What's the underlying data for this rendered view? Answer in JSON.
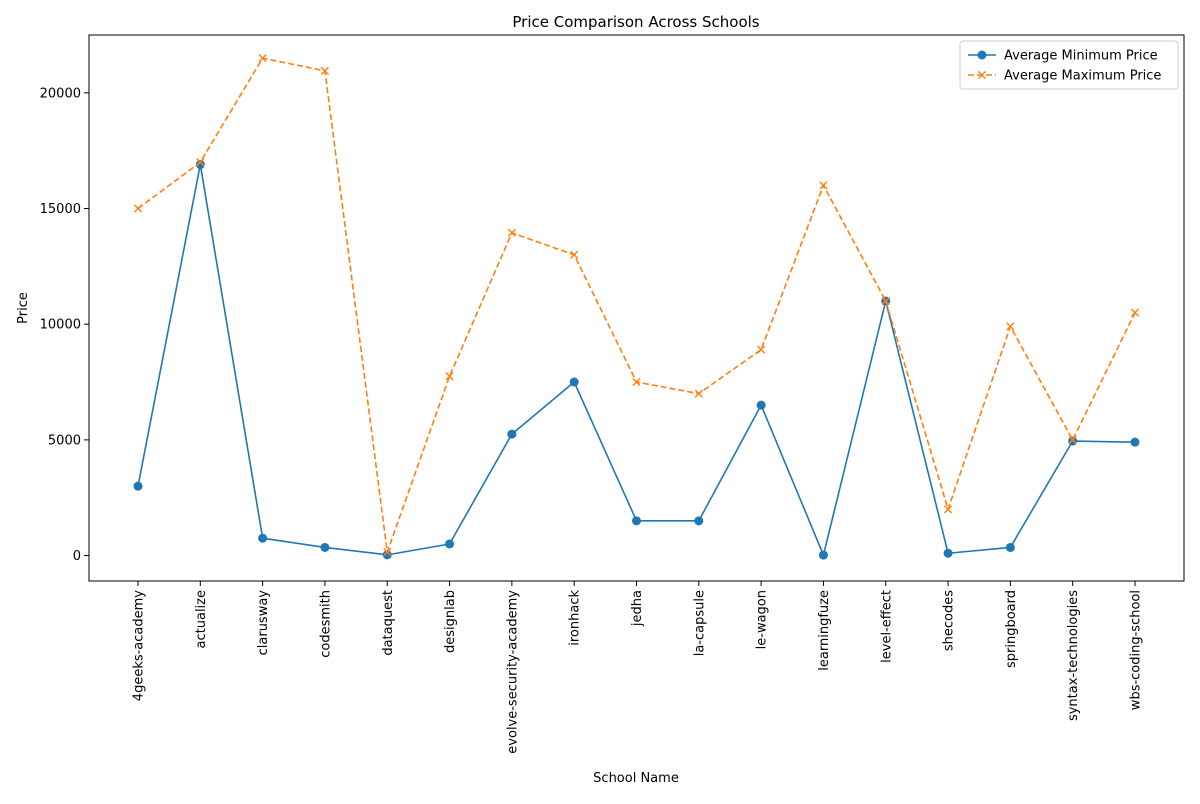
{
  "chart_data": {
    "type": "line",
    "title": "Price Comparison Across Schools",
    "xlabel": "School Name",
    "ylabel": "Price",
    "ylim": [
      -1100,
      22500
    ],
    "yticks": [
      0,
      5000,
      10000,
      15000,
      20000
    ],
    "grid": false,
    "legend_position": "top-right",
    "categories": [
      "4geeks-academy",
      "actualize",
      "clarusway",
      "codesmith",
      "dataquest",
      "designlab",
      "evolve-security-academy",
      "ironhack",
      "jedha",
      "la-capsule",
      "le-wagon",
      "learningfuze",
      "level-effect",
      "shecodes",
      "springboard",
      "syntax-technologies",
      "wbs-coding-school"
    ],
    "series": [
      {
        "name": "Average Minimum Price",
        "color": "#1f77b4",
        "line_style": "solid",
        "marker": "circle",
        "values": [
          3000,
          16900,
          750,
          350,
          30,
          500,
          5250,
          7500,
          1500,
          1500,
          6500,
          20,
          11000,
          100,
          350,
          4950,
          4900
        ]
      },
      {
        "name": "Average Maximum Price",
        "color": "#ff7f0e",
        "line_style": "dashed",
        "marker": "x",
        "values": [
          15000,
          17000,
          21500,
          20950,
          150,
          7750,
          13950,
          13000,
          7500,
          7000,
          8900,
          16000,
          11000,
          2000,
          9900,
          5000,
          10500
        ]
      }
    ]
  }
}
